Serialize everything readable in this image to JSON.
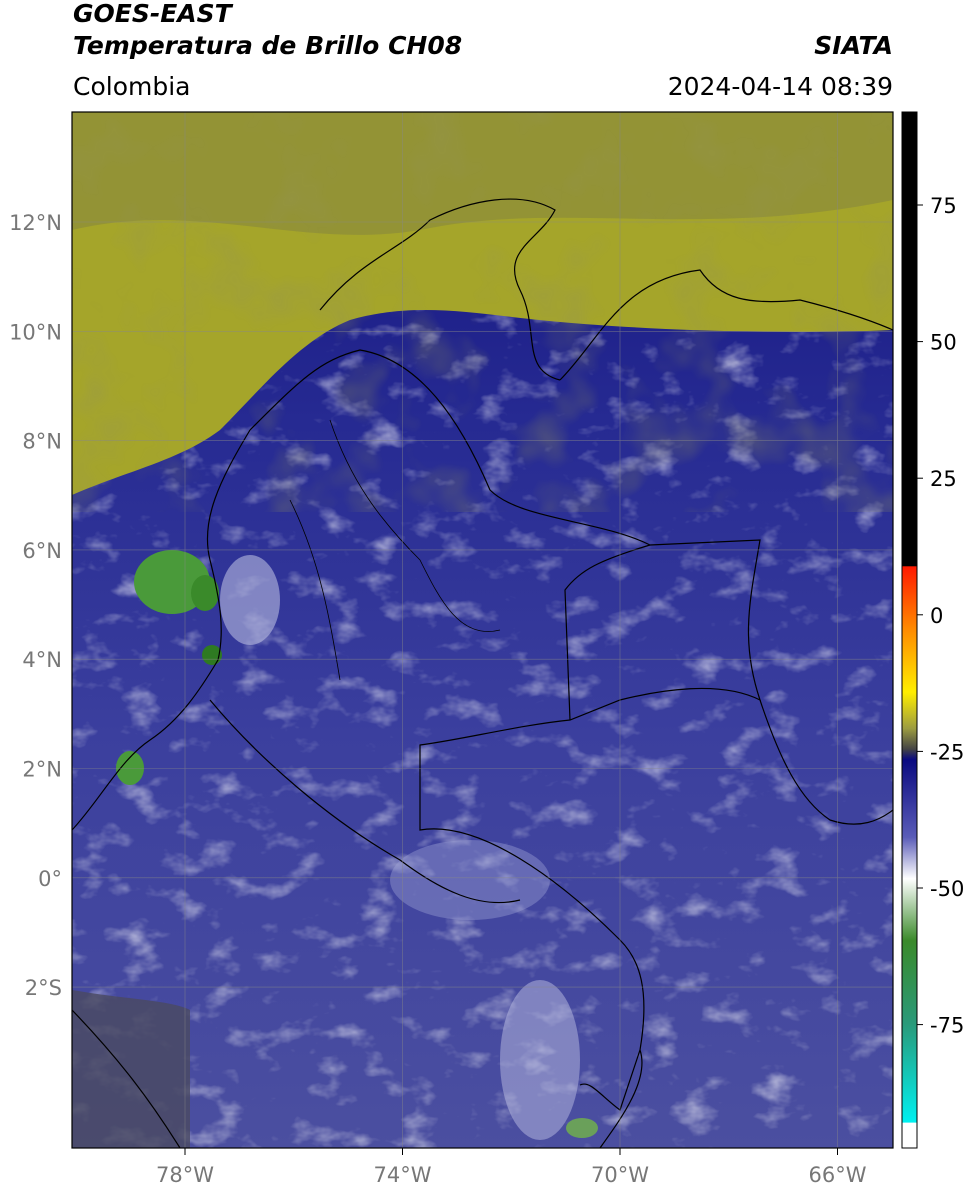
{
  "header": {
    "title_line1": "GOES-EAST",
    "title_line2": "Temperatura de Brillo CH08",
    "source": "SIATA",
    "region": "Colombia",
    "timestamp": "2024-04-14 08:39"
  },
  "map": {
    "lat_ticks": [
      "12°N",
      "10°N",
      "8°N",
      "6°N",
      "4°N",
      "2°N",
      "0°",
      "2°S"
    ],
    "lon_ticks": [
      "78°W",
      "74°W",
      "70°W",
      "66°W"
    ]
  },
  "colorbar": {
    "ticks": [
      75,
      50,
      25,
      0,
      -25,
      -50,
      -75
    ]
  }
}
